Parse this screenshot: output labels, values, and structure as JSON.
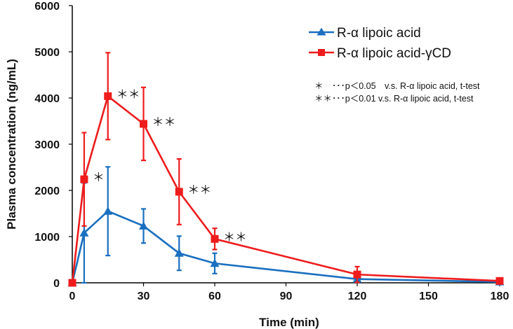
{
  "chart_data": {
    "type": "line",
    "xlabel": "Time (min)",
    "ylabel": "Plasma concentration (ng/mL)",
    "xlim": [
      0,
      180
    ],
    "ylim": [
      0,
      6000
    ],
    "xticks": [
      0,
      30,
      60,
      90,
      120,
      150,
      180
    ],
    "yticks": [
      0,
      1000,
      2000,
      3000,
      4000,
      5000,
      6000
    ],
    "grid": false,
    "legend_position": "top-right",
    "series": [
      {
        "name": "R-α lipoic acid",
        "color": "#1a6fc0",
        "marker": "triangle",
        "x": [
          0,
          5,
          15,
          30,
          45,
          60,
          120,
          180
        ],
        "y": [
          0,
          1080,
          1550,
          1230,
          640,
          420,
          80,
          20
        ],
        "err": [
          0,
          1080,
          960,
          370,
          370,
          220,
          30,
          10
        ]
      },
      {
        "name": "R-α lipoic acid-γCD",
        "color": "#ee1c1c",
        "marker": "square",
        "x": [
          0,
          5,
          15,
          30,
          45,
          60,
          120,
          180
        ],
        "y": [
          0,
          2240,
          4040,
          3440,
          1970,
          950,
          180,
          40
        ],
        "err": [
          0,
          1010,
          940,
          790,
          710,
          230,
          170,
          20
        ]
      }
    ],
    "annotations": [
      {
        "x": 5,
        "y": 2240,
        "text": "＊"
      },
      {
        "x": 15,
        "y": 4040,
        "text": "＊＊"
      },
      {
        "x": 30,
        "y": 3440,
        "text": "＊＊"
      },
      {
        "x": 45,
        "y": 1970,
        "text": "＊＊"
      },
      {
        "x": 60,
        "y": 950,
        "text": "＊＊"
      }
    ],
    "notes": [
      "＊　･･･p＜0.05　v.s. R-α lipoic acid,  t-test",
      "＊＊･･･p＜0.01  v.s. R-α lipoic acid,   t-test"
    ]
  }
}
